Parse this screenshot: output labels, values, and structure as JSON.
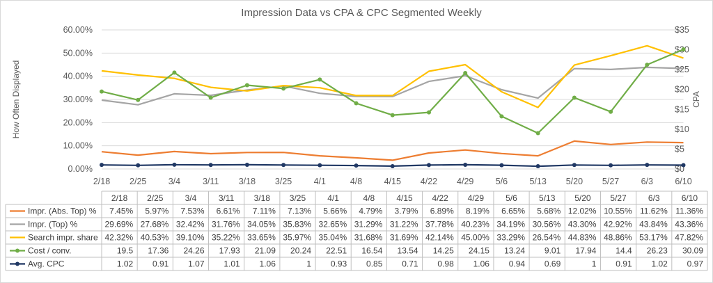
{
  "chart_data": {
    "type": "line",
    "title": "Impression Data vs CPA & CPC Segmented Weekly",
    "ylabel": "How Often Displayed",
    "y2label": "CPA",
    "ylim": [
      0,
      0.6
    ],
    "y2lim": [
      0,
      35
    ],
    "y_ticks": [
      "0.00%",
      "10.00%",
      "20.00%",
      "30.00%",
      "40.00%",
      "50.00%",
      "60.00%"
    ],
    "y2_ticks": [
      "$0",
      "$5",
      "$10",
      "$15",
      "$20",
      "$25",
      "$30",
      "$35"
    ],
    "categories": [
      "2/18",
      "2/25",
      "3/4",
      "3/11",
      "3/18",
      "3/25",
      "4/1",
      "4/8",
      "4/15",
      "4/22",
      "4/29",
      "5/6",
      "5/13",
      "5/20",
      "5/27",
      "6/3",
      "6/10"
    ],
    "table_categories": [
      "2/18",
      "2/25",
      "3/4",
      "3/11",
      "3/18",
      "3/25",
      "4/1",
      "4/8",
      "4/15",
      "4/22",
      "4/29",
      "5/6",
      "5/13",
      "5/20",
      "5/27",
      "6/3",
      "6/10"
    ],
    "series": [
      {
        "name": "Impr. (Abs. Top) %",
        "axis": "left",
        "color": "#ED7D31",
        "marker": false,
        "values": [
          0.0745,
          0.0597,
          0.0753,
          0.0661,
          0.0711,
          0.0713,
          0.0566,
          0.0479,
          0.0379,
          0.0689,
          0.0819,
          0.0665,
          0.0568,
          0.1202,
          0.1055,
          0.1162,
          0.1136
        ],
        "labels": [
          "7.45%",
          "5.97%",
          "7.53%",
          "6.61%",
          "7.11%",
          "7.13%",
          "5.66%",
          "4.79%",
          "3.79%",
          "6.89%",
          "8.19%",
          "6.65%",
          "5.68%",
          "12.02%",
          "10.55%",
          "11.62%",
          "11.36%"
        ]
      },
      {
        "name": "Impr. (Top) %",
        "axis": "left",
        "color": "#A5A5A5",
        "marker": false,
        "values": [
          0.2969,
          0.2768,
          0.3242,
          0.3176,
          0.3405,
          0.3583,
          0.3265,
          0.3129,
          0.3122,
          0.3778,
          0.4023,
          0.3419,
          0.3056,
          0.433,
          0.4292,
          0.4384,
          0.4336
        ],
        "labels": [
          "29.69%",
          "27.68%",
          "32.42%",
          "31.76%",
          "34.05%",
          "35.83%",
          "32.65%",
          "31.29%",
          "31.22%",
          "37.78%",
          "40.23%",
          "34.19%",
          "30.56%",
          "43.30%",
          "42.92%",
          "43.84%",
          "43.36%"
        ]
      },
      {
        "name": "Search impr. share",
        "axis": "left",
        "color": "#FFC000",
        "marker": false,
        "values": [
          0.4232,
          0.4053,
          0.391,
          0.3522,
          0.3365,
          0.3597,
          0.3504,
          0.3168,
          0.3169,
          0.4214,
          0.45,
          0.3329,
          0.2654,
          0.4483,
          0.4886,
          0.5317,
          0.4782
        ],
        "labels": [
          "42.32%",
          "40.53%",
          "39.10%",
          "35.22%",
          "33.65%",
          "35.97%",
          "35.04%",
          "31.68%",
          "31.69%",
          "42.14%",
          "45.00%",
          "33.29%",
          "26.54%",
          "44.83%",
          "48.86%",
          "53.17%",
          "47.82%"
        ]
      },
      {
        "name": "Cost / conv.",
        "axis": "right",
        "color": "#70AD47",
        "marker": true,
        "values": [
          19.5,
          17.36,
          24.26,
          17.93,
          21.09,
          20.24,
          22.51,
          16.54,
          13.54,
          14.25,
          24.15,
          13.24,
          9.01,
          17.94,
          14.4,
          26.23,
          30.09
        ],
        "labels": [
          "19.5",
          "17.36",
          "24.26",
          "17.93",
          "21.09",
          "20.24",
          "22.51",
          "16.54",
          "13.54",
          "14.25",
          "24.15",
          "13.24",
          "9.01",
          "17.94",
          "14.4",
          "26.23",
          "30.09"
        ]
      },
      {
        "name": "Avg. CPC",
        "axis": "right",
        "color": "#203864",
        "marker": true,
        "values": [
          1.02,
          0.91,
          1.07,
          1.01,
          1.06,
          1,
          0.93,
          0.85,
          0.71,
          0.98,
          1.06,
          0.94,
          0.69,
          1,
          0.91,
          1.02,
          0.97
        ],
        "labels": [
          "1.02",
          "0.91",
          "1.07",
          "1.01",
          "1.06",
          "1",
          "0.93",
          "0.85",
          "0.71",
          "0.98",
          "1.06",
          "0.94",
          "0.69",
          "1",
          "0.91",
          "1.02",
          "0.97"
        ]
      }
    ],
    "grid": true,
    "legend": "data-table"
  }
}
